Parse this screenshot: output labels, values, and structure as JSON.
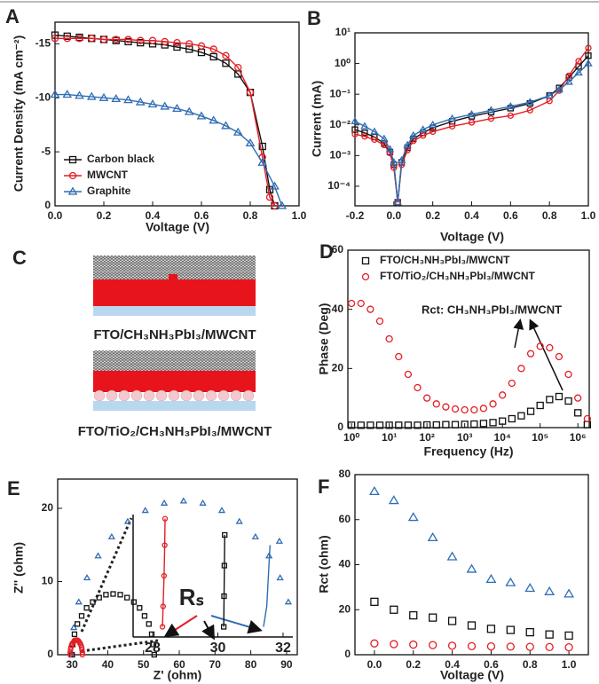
{
  "chart_data": [
    {
      "type": "line",
      "panel": "A",
      "xlabel": "Voltage (V)",
      "ylabel": "Current Density (mA cm⁻²)",
      "xlim": [
        0,
        1.0
      ],
      "ylim": [
        0,
        -17
      ],
      "xticks": [
        {
          "value": 0,
          "label": "0.0"
        },
        0.2,
        0.4,
        0.6,
        0.8,
        {
          "value": 1,
          "label": "1.0"
        }
      ],
      "yticks": [
        0,
        -5,
        -10,
        -15
      ],
      "legend": "lower left",
      "series": [
        {
          "name": "Carbon black",
          "color": "#111111",
          "marker": "square",
          "x": [
            0,
            0.05,
            0.1,
            0.15,
            0.2,
            0.25,
            0.3,
            0.35,
            0.4,
            0.45,
            0.5,
            0.55,
            0.6,
            0.65,
            0.7,
            0.75,
            0.8,
            0.85,
            0.88,
            0.9
          ],
          "values": [
            -15.8,
            -15.7,
            -15.6,
            -15.5,
            -15.4,
            -15.3,
            -15.2,
            -15.1,
            -15.0,
            -14.9,
            -14.7,
            -14.5,
            -14.2,
            -13.8,
            -13.2,
            -12.2,
            -10.5,
            -5.5,
            -1.5,
            0
          ]
        },
        {
          "name": "MWCNT",
          "color": "#e31e24",
          "marker": "circle",
          "x": [
            0,
            0.05,
            0.1,
            0.15,
            0.2,
            0.25,
            0.3,
            0.35,
            0.4,
            0.45,
            0.5,
            0.55,
            0.6,
            0.65,
            0.7,
            0.75,
            0.8,
            0.85,
            0.88,
            0.9
          ],
          "values": [
            -15.5,
            -15.5,
            -15.5,
            -15.5,
            -15.4,
            -15.4,
            -15.4,
            -15.3,
            -15.3,
            -15.2,
            -15.1,
            -15.0,
            -14.8,
            -14.5,
            -13.9,
            -12.8,
            -10.5,
            -4.5,
            -0.8,
            0
          ]
        },
        {
          "name": "Graphite",
          "color": "#2f6db5",
          "marker": "triangle",
          "x": [
            0,
            0.05,
            0.1,
            0.15,
            0.2,
            0.25,
            0.3,
            0.35,
            0.4,
            0.45,
            0.5,
            0.55,
            0.6,
            0.65,
            0.7,
            0.75,
            0.8,
            0.85,
            0.9,
            0.93
          ],
          "values": [
            -10.3,
            -10.3,
            -10.2,
            -10.1,
            -10.0,
            -9.9,
            -9.8,
            -9.6,
            -9.4,
            -9.2,
            -9.0,
            -8.7,
            -8.3,
            -7.9,
            -7.4,
            -6.8,
            -5.8,
            -4.0,
            -1.8,
            0
          ]
        }
      ]
    },
    {
      "type": "line",
      "panel": "B",
      "xlabel": "Voltage (V)",
      "ylabel": "Current (mA)",
      "log_y": true,
      "xlim": [
        -0.2,
        1.0
      ],
      "ylim": [
        2.3e-05,
        10
      ],
      "xticks": [
        -0.2,
        {
          "value": 0,
          "label": "0.0"
        },
        0.2,
        0.4,
        0.6,
        0.8,
        {
          "value": 1,
          "label": "1.0"
        }
      ],
      "yticks": [
        {
          "value": 0.0001,
          "label": "10⁻⁴"
        },
        {
          "value": 0.001,
          "label": "10⁻³"
        },
        {
          "value": 0.01,
          "label": "10⁻²"
        },
        {
          "value": 0.1,
          "label": "10⁻¹"
        },
        {
          "value": 1,
          "label": "10⁰"
        },
        {
          "value": 10,
          "label": "10¹"
        }
      ],
      "series": [
        {
          "color": "#111111",
          "marker": "square",
          "x": [
            -0.2,
            -0.15,
            -0.1,
            -0.05,
            -0.02,
            0,
            0.02,
            0.04,
            0.07,
            0.1,
            0.15,
            0.2,
            0.3,
            0.4,
            0.5,
            0.6,
            0.7,
            0.8,
            0.85,
            0.9,
            0.95,
            1.0
          ],
          "values": [
            0.007,
            0.0055,
            0.004,
            0.0025,
            0.0013,
            0.0005,
            3e-05,
            0.0006,
            0.0018,
            0.0035,
            0.0055,
            0.008,
            0.013,
            0.019,
            0.026,
            0.035,
            0.05,
            0.09,
            0.16,
            0.35,
            0.8,
            1.8
          ]
        },
        {
          "color": "#e31e24",
          "marker": "circle",
          "x": [
            -0.2,
            -0.15,
            -0.1,
            -0.05,
            -0.02,
            0,
            0.02,
            0.04,
            0.07,
            0.1,
            0.15,
            0.2,
            0.3,
            0.4,
            0.5,
            0.6,
            0.7,
            0.8,
            0.85,
            0.9,
            0.95,
            1.0
          ],
          "values": [
            0.005,
            0.0042,
            0.0033,
            0.0022,
            0.0012,
            0.0004,
            3e-05,
            0.0005,
            0.0015,
            0.003,
            0.0045,
            0.006,
            0.009,
            0.012,
            0.016,
            0.02,
            0.03,
            0.06,
            0.13,
            0.4,
            1.2,
            3.2
          ]
        },
        {
          "color": "#2f6db5",
          "marker": "triangle",
          "x": [
            -0.2,
            -0.15,
            -0.1,
            -0.05,
            -0.02,
            0,
            0.02,
            0.04,
            0.07,
            0.1,
            0.15,
            0.2,
            0.3,
            0.4,
            0.5,
            0.6,
            0.7,
            0.8,
            0.85,
            0.9,
            0.95,
            1.0
          ],
          "values": [
            0.013,
            0.009,
            0.006,
            0.0035,
            0.0016,
            0.0006,
            3e-05,
            0.0007,
            0.0022,
            0.0045,
            0.007,
            0.01,
            0.016,
            0.022,
            0.03,
            0.04,
            0.055,
            0.09,
            0.14,
            0.25,
            0.5,
            1.0
          ]
        }
      ]
    },
    {
      "type": "scatter",
      "panel": "D",
      "xlabel": "Frequency (Hz)",
      "ylabel": "Phase (Deg)",
      "log_x": true,
      "xlim": [
        0.8,
        2000000
      ],
      "ylim": [
        0,
        60
      ],
      "xticks": [
        {
          "value": 1,
          "label": "10⁰"
        },
        {
          "value": 10,
          "label": "10¹"
        },
        {
          "value": 100,
          "label": "10²"
        },
        {
          "value": 1000,
          "label": "10³"
        },
        {
          "value": 10000,
          "label": "10⁴"
        },
        {
          "value": 100000,
          "label": "10⁵"
        },
        {
          "value": 1000000,
          "label": "10⁶"
        }
      ],
      "yticks": [
        0,
        20,
        40,
        60
      ],
      "legend": "upper left",
      "annotation": "Rct: CH₃NH₃PbI₃/MWCNT",
      "series": [
        {
          "name": "FTO/CH₃NH₃PbI₃/MWCNT",
          "color": "#111111",
          "marker": "square",
          "x": [
            1,
            1.78,
            3.16,
            5.62,
            10,
            17.8,
            31.6,
            56.2,
            100,
            178,
            316,
            562,
            1000,
            1780,
            3160,
            5620,
            10000,
            17800,
            31600,
            56200,
            100000,
            178000,
            316000,
            562000,
            1000000,
            1780000
          ],
          "values": [
            0.8,
            0.8,
            0.8,
            0.8,
            0.8,
            0.8,
            0.8,
            0.8,
            0.9,
            0.9,
            1,
            1,
            1.1,
            1.2,
            1.4,
            1.7,
            2.2,
            3,
            4,
            5.5,
            7.5,
            9.5,
            10.5,
            9,
            5,
            1
          ]
        },
        {
          "name": "FTO/TiO₂/CH₃NH₃PbI₃/MWCNT",
          "color": "#e31e24",
          "marker": "circle",
          "x": [
            1,
            1.78,
            3.16,
            5.62,
            10,
            17.8,
            31.6,
            56.2,
            100,
            178,
            316,
            562,
            1000,
            1780,
            3160,
            5620,
            10000,
            17800,
            31600,
            56200,
            100000,
            178000,
            316000,
            562000,
            1000000,
            1780000
          ],
          "values": [
            42,
            42,
            40,
            36,
            30,
            24,
            18,
            13.5,
            10,
            8,
            7,
            6.3,
            6,
            6,
            6.5,
            8,
            11,
            15,
            20,
            25,
            27.5,
            27,
            24,
            18,
            10,
            3
          ]
        }
      ]
    },
    {
      "type": "scatter",
      "panel": "E",
      "xlabel": "Z' (ohm)",
      "ylabel": "Z'' (ohm)",
      "xlim": [
        26,
        93
      ],
      "ylim": [
        0,
        24
      ],
      "xticks": [
        30,
        40,
        50,
        60,
        70,
        80,
        90
      ],
      "yticks": [
        0,
        10,
        20
      ],
      "series": [
        {
          "color": "#2f6db5",
          "marker": "triangle",
          "x": [
            30.0,
            30.5,
            31.9,
            34.2,
            37.3,
            41.1,
            45.6,
            50.5,
            55.8,
            61.2,
            66.6,
            71.9,
            76.8,
            81.3,
            85.1,
            88.2,
            90.5,
            88.0
          ],
          "values": [
            0,
            3.7,
            7.2,
            10.5,
            13.5,
            16.1,
            18.2,
            19.7,
            20.7,
            21,
            20.7,
            19.7,
            18.2,
            16.1,
            13.5,
            10.5,
            7.2,
            15.5
          ]
        },
        {
          "color": "#111111",
          "marker": "square",
          "x": [
            30.0,
            30.2,
            30.7,
            31.5,
            32.7,
            34.1,
            35.8,
            37.6,
            39.5,
            41.5,
            43.5,
            45.4,
            47.3,
            48.9,
            50.3,
            51.5,
            52.3,
            52.8,
            53.0
          ],
          "values": [
            0,
            1.4,
            2.8,
            4.2,
            5.3,
            6.4,
            7.2,
            7.8,
            8.2,
            8.3,
            8.2,
            7.8,
            7.2,
            6.4,
            5.3,
            4.2,
            2.8,
            1.4,
            0
          ]
        },
        {
          "color": "#e31e24",
          "marker": "circle",
          "x": [
            29.5,
            29.5,
            29.6,
            29.7,
            29.9,
            30.1,
            30.4,
            30.6,
            30.9,
            31.2,
            31.5,
            31.8,
            32.1,
            32.3,
            32.5,
            32.7,
            32.8,
            32.9,
            32.9
          ],
          "values": [
            0,
            0.3,
            0.7,
            1,
            1.3,
            1.5,
            1.7,
            1.9,
            2,
            2,
            2,
            1.9,
            1.7,
            1.5,
            1.3,
            1,
            0.7,
            0.3,
            0
          ]
        }
      ]
    },
    {
      "type": "line",
      "xlim": [
        27.4,
        32.3
      ],
      "ylim": [
        0,
        0.6
      ],
      "xticks": [
        28,
        30,
        32
      ],
      "annotation": "Rₛ",
      "series": [
        {
          "color": "#e31e24",
          "marker": "circle",
          "x": [
            28.3,
            28.32,
            28.35,
            28.37,
            28.38
          ],
          "values": [
            0.05,
            0.15,
            0.3,
            0.45,
            0.58
          ]
        },
        {
          "color": "#111111",
          "marker": "square",
          "x": [
            30.18,
            30.19,
            30.2,
            30.21
          ],
          "values": [
            0.05,
            0.2,
            0.35,
            0.5
          ]
        },
        {
          "color": "#2f6db5",
          "marker": "none",
          "x": [
            31.4,
            31.5,
            31.55,
            31.6
          ],
          "values": [
            0.05,
            0.15,
            0.3,
            0.45
          ]
        }
      ]
    },
    {
      "type": "scatter",
      "panel": "F",
      "xlabel": "Voltage (V)",
      "ylabel": "Rct (ohm)",
      "xlim": [
        -0.1,
        1.1
      ],
      "ylim": [
        0,
        80
      ],
      "xticks": [
        {
          "value": 0,
          "label": "0.0"
        },
        0.2,
        0.4,
        0.6,
        0.8,
        {
          "value": 1,
          "label": "1.0"
        }
      ],
      "yticks": [
        0,
        20,
        40,
        60,
        80
      ],
      "series": [
        {
          "color": "#2f6db5",
          "marker": "triangle",
          "x": [
            0,
            0.1,
            0.2,
            0.3,
            0.4,
            0.5,
            0.6,
            0.7,
            0.8,
            0.9,
            1.0
          ],
          "values": [
            72.5,
            68.5,
            61,
            52,
            43.5,
            38,
            33.5,
            32,
            29.5,
            28,
            27
          ]
        },
        {
          "color": "#111111",
          "marker": "square",
          "x": [
            0,
            0.1,
            0.2,
            0.3,
            0.4,
            0.5,
            0.6,
            0.7,
            0.8,
            0.9,
            1.0
          ],
          "values": [
            23.5,
            20,
            17.5,
            16.5,
            15,
            13,
            11.5,
            11,
            10,
            9,
            8.5
          ]
        },
        {
          "color": "#e31e24",
          "marker": "circle",
          "x": [
            0,
            0.1,
            0.2,
            0.3,
            0.4,
            0.5,
            0.6,
            0.7,
            0.8,
            0.9,
            1.0
          ],
          "values": [
            5,
            4.7,
            4.5,
            4.3,
            4,
            3.8,
            3.7,
            3.6,
            3.5,
            3.4,
            3.3
          ]
        }
      ]
    }
  ],
  "schematic": {
    "panel": "C",
    "labels": [
      "FTO/CH₃NH₃PbI₃/MWCNT",
      "FTO/TiO₂/CH₃NH₃PbI₃/MWCNT"
    ]
  }
}
